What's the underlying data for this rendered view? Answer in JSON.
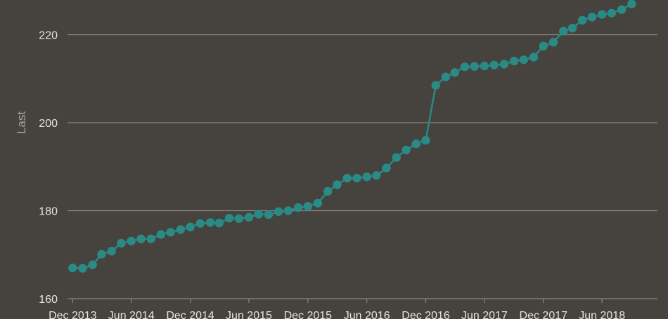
{
  "chart_data": {
    "type": "line",
    "ylabel": "Last",
    "ylim": [
      160,
      227
    ],
    "yticks": [
      160,
      180,
      200,
      220
    ],
    "xlim": [
      "2013-11-15",
      "2018-11-20"
    ],
    "xticks": [
      {
        "date": "2013-12-01",
        "label": "Dec 2013"
      },
      {
        "date": "2014-06-01",
        "label": "Jun 2014"
      },
      {
        "date": "2014-12-01",
        "label": "Dec 2014"
      },
      {
        "date": "2015-06-01",
        "label": "Jun 2015"
      },
      {
        "date": "2015-12-01",
        "label": "Dec 2015"
      },
      {
        "date": "2016-06-01",
        "label": "Jun 2016"
      },
      {
        "date": "2016-12-01",
        "label": "Dec 2016"
      },
      {
        "date": "2017-06-01",
        "label": "Jun 2017"
      },
      {
        "date": "2017-12-01",
        "label": "Dec 2017"
      },
      {
        "date": "2018-06-01",
        "label": "Jun 2018"
      }
    ],
    "grid": true,
    "series": [
      {
        "color": "#2a8a86",
        "x": [
          "2013-12-01",
          "2014-01-01",
          "2014-02-01",
          "2014-03-01",
          "2014-04-01",
          "2014-05-01",
          "2014-06-01",
          "2014-07-01",
          "2014-08-01",
          "2014-09-01",
          "2014-10-01",
          "2014-11-01",
          "2014-12-01",
          "2015-01-01",
          "2015-02-01",
          "2015-03-01",
          "2015-04-01",
          "2015-05-01",
          "2015-06-01",
          "2015-07-01",
          "2015-08-01",
          "2015-09-01",
          "2015-10-01",
          "2015-11-01",
          "2015-12-01",
          "2016-01-01",
          "2016-02-01",
          "2016-03-01",
          "2016-04-01",
          "2016-05-01",
          "2016-06-01",
          "2016-07-01",
          "2016-08-01",
          "2016-09-01",
          "2016-10-01",
          "2016-11-01",
          "2016-12-01",
          "2017-01-01",
          "2017-02-01",
          "2017-03-01",
          "2017-04-01",
          "2017-05-01",
          "2017-06-01",
          "2017-07-01",
          "2017-08-01",
          "2017-09-01",
          "2017-10-01",
          "2017-11-01",
          "2017-12-01",
          "2018-01-01",
          "2018-02-01",
          "2018-03-01",
          "2018-04-01",
          "2018-05-01",
          "2018-06-01",
          "2018-07-01",
          "2018-08-01",
          "2018-09-01"
        ],
        "y": [
          167.0,
          166.9,
          167.7,
          170.1,
          170.8,
          172.6,
          173.1,
          173.6,
          173.6,
          174.6,
          175.1,
          175.7,
          176.3,
          177.1,
          177.3,
          177.2,
          178.3,
          178.2,
          178.5,
          179.2,
          179.1,
          179.8,
          180.0,
          180.7,
          181.0,
          181.7,
          184.4,
          185.9,
          187.4,
          187.4,
          187.7,
          188.0,
          189.7,
          192.1,
          193.8,
          195.2,
          196.0,
          208.5,
          210.4,
          211.4,
          212.7,
          212.8,
          212.9,
          213.1,
          213.3,
          214.0,
          214.3,
          214.9,
          217.4,
          218.3,
          220.8,
          221.5,
          223.3,
          224.0,
          224.6,
          224.9,
          225.7,
          227.0
        ]
      }
    ]
  },
  "colors": {
    "background": "#46423e",
    "grid": "#8a8580",
    "text": "#e6e2dd",
    "axis_title": "#a9a4a0",
    "series": "#2a8a86"
  }
}
